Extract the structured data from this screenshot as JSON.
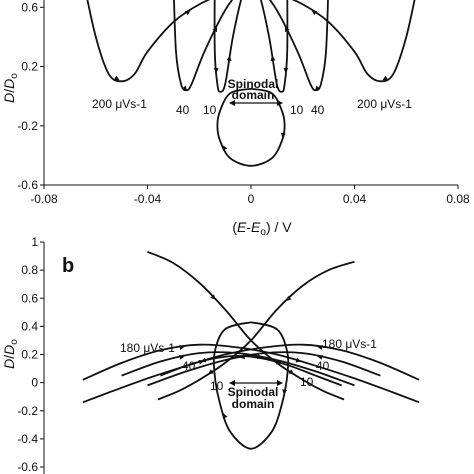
{
  "chart_data": [
    {
      "type": "line",
      "panel_label": "",
      "xlabel": "(E-E_o) / V",
      "ylabel": "D/D_o",
      "xlim": [
        -0.08,
        0.08
      ],
      "ylim": [
        -0.6,
        0.8
      ],
      "x_ticks": [
        "-0.08",
        "-0.04",
        "0",
        "0.04",
        "0.08"
      ],
      "y_ticks": [
        "-0.6",
        "-0.2",
        "0.2",
        "0.6"
      ],
      "annotations": {
        "rate_left": "200 μVs-1",
        "rate_right": "200 μVs-1",
        "n40_left": "40",
        "n10_left": "10",
        "n10_right": "10",
        "n40_right": "40",
        "spinodal_1": "Spinodal",
        "spinodal_2": "domain"
      },
      "series": [
        {
          "x": [
            -0.065,
            -0.06,
            -0.055,
            -0.05,
            -0.045,
            -0.04,
            -0.03,
            -0.02,
            -0.01,
            -0.005,
            0.0
          ],
          "y": [
            0.8,
            0.4,
            0.15,
            0.1,
            0.15,
            0.3,
            0.5,
            0.62,
            0.7,
            0.75,
            0.8
          ]
        },
        {
          "x": [
            0.065,
            0.06,
            0.055,
            0.05,
            0.045,
            0.04,
            0.03,
            0.02,
            0.01,
            0.005,
            0.0
          ],
          "y": [
            0.8,
            0.4,
            0.15,
            0.1,
            0.15,
            0.3,
            0.5,
            0.62,
            0.7,
            0.75,
            0.8
          ]
        },
        {
          "x": [
            -0.03,
            -0.029,
            -0.027,
            -0.025,
            -0.023,
            -0.018,
            -0.01,
            -0.004,
            0.0
          ],
          "y": [
            0.8,
            0.3,
            0.08,
            0.04,
            0.08,
            0.3,
            0.58,
            0.72,
            0.78
          ]
        },
        {
          "x": [
            0.03,
            0.029,
            0.027,
            0.025,
            0.023,
            0.018,
            0.01,
            0.004,
            0.0
          ],
          "y": [
            0.8,
            0.3,
            0.08,
            0.04,
            0.08,
            0.3,
            0.58,
            0.72,
            0.78
          ]
        },
        {
          "x": [
            -0.014,
            -0.014,
            -0.013,
            -0.012,
            -0.01,
            -0.007,
            -0.003,
            0.0
          ],
          "y": [
            0.8,
            0.3,
            0.08,
            0.03,
            0.08,
            0.4,
            0.7,
            0.78
          ]
        },
        {
          "x": [
            0.014,
            0.014,
            0.013,
            0.012,
            0.01,
            0.007,
            0.003,
            0.0
          ],
          "y": [
            0.8,
            0.3,
            0.08,
            0.03,
            0.08,
            0.4,
            0.7,
            0.78
          ]
        },
        {
          "x": [
            0.0,
            0.008,
            0.012,
            0.013,
            0.012,
            0.008,
            0.0,
            -0.008,
            -0.012,
            -0.013,
            -0.012,
            -0.008,
            0.0
          ],
          "y": [
            0.05,
            0.02,
            -0.1,
            -0.2,
            -0.3,
            -0.42,
            -0.47,
            -0.42,
            -0.3,
            -0.2,
            -0.1,
            0.02,
            0.05
          ]
        }
      ]
    },
    {
      "type": "line",
      "panel_label": "b",
      "xlabel": "",
      "ylabel": "D/D_o",
      "xlim": [
        -0.08,
        0.08
      ],
      "ylim": [
        -0.6,
        1.0
      ],
      "y_ticks": [
        "1",
        "0.8",
        "0.6",
        "0.4",
        "0.2",
        "0",
        "-0.2",
        "-0.4",
        "-0.6"
      ],
      "annotations": {
        "rate_left": "180 μVs-1",
        "rate_right": "180 μVs-1",
        "n40_left": "40",
        "n10_left": "10",
        "n40_right": "40",
        "n10_right": "10",
        "spinodal_1": "Spinodal",
        "spinodal_2": "domain"
      },
      "series": [
        {
          "x": [
            -0.04,
            -0.03,
            -0.02,
            -0.01,
            0.0,
            0.01,
            0.02,
            0.028,
            0.036
          ],
          "y": [
            0.93,
            0.85,
            0.71,
            0.52,
            0.3,
            0.14,
            0.02,
            -0.06,
            -0.12
          ]
        },
        {
          "x": [
            0.04,
            0.03,
            0.02,
            0.01,
            0.0,
            -0.01,
            -0.02,
            -0.028,
            -0.036
          ],
          "y": [
            0.86,
            0.8,
            0.69,
            0.52,
            0.3,
            0.14,
            0.02,
            -0.06,
            -0.12
          ]
        },
        {
          "x": [
            -0.065,
            -0.05,
            -0.035,
            -0.02,
            -0.005,
            0.01,
            0.025,
            0.04,
            0.055,
            0.065
          ],
          "y": [
            0.02,
            0.14,
            0.23,
            0.27,
            0.25,
            0.2,
            0.12,
            0.03,
            -0.07,
            -0.14
          ]
        },
        {
          "x": [
            0.065,
            0.05,
            0.035,
            0.02,
            0.005,
            -0.01,
            -0.025,
            -0.04,
            -0.055,
            -0.065
          ],
          "y": [
            0.02,
            0.14,
            0.23,
            0.27,
            0.25,
            0.2,
            0.12,
            0.03,
            -0.07,
            -0.14
          ]
        },
        {
          "x": [
            -0.05,
            -0.035,
            -0.02,
            -0.005,
            0.01,
            0.025,
            0.04
          ],
          "y": [
            0.05,
            0.15,
            0.21,
            0.21,
            0.16,
            0.08,
            -0.02
          ]
        },
        {
          "x": [
            0.05,
            0.035,
            0.02,
            0.005,
            -0.01,
            -0.025,
            -0.04
          ],
          "y": [
            0.05,
            0.15,
            0.21,
            0.21,
            0.16,
            0.08,
            -0.02
          ]
        },
        {
          "x": [
            -0.035,
            -0.025,
            -0.015,
            -0.005,
            0.005,
            0.015,
            0.025,
            0.035
          ],
          "y": [
            0.05,
            0.12,
            0.17,
            0.19,
            0.17,
            0.12,
            0.05,
            -0.02
          ]
        },
        {
          "x": [
            0.0,
            0.01,
            0.014,
            0.014,
            0.012,
            0.008,
            0.0,
            -0.008,
            -0.012,
            -0.014,
            -0.014,
            -0.01,
            0.0
          ],
          "y": [
            0.43,
            0.38,
            0.22,
            0.05,
            -0.15,
            -0.35,
            -0.47,
            -0.35,
            -0.15,
            0.05,
            0.22,
            0.38,
            0.43
          ]
        }
      ]
    }
  ]
}
